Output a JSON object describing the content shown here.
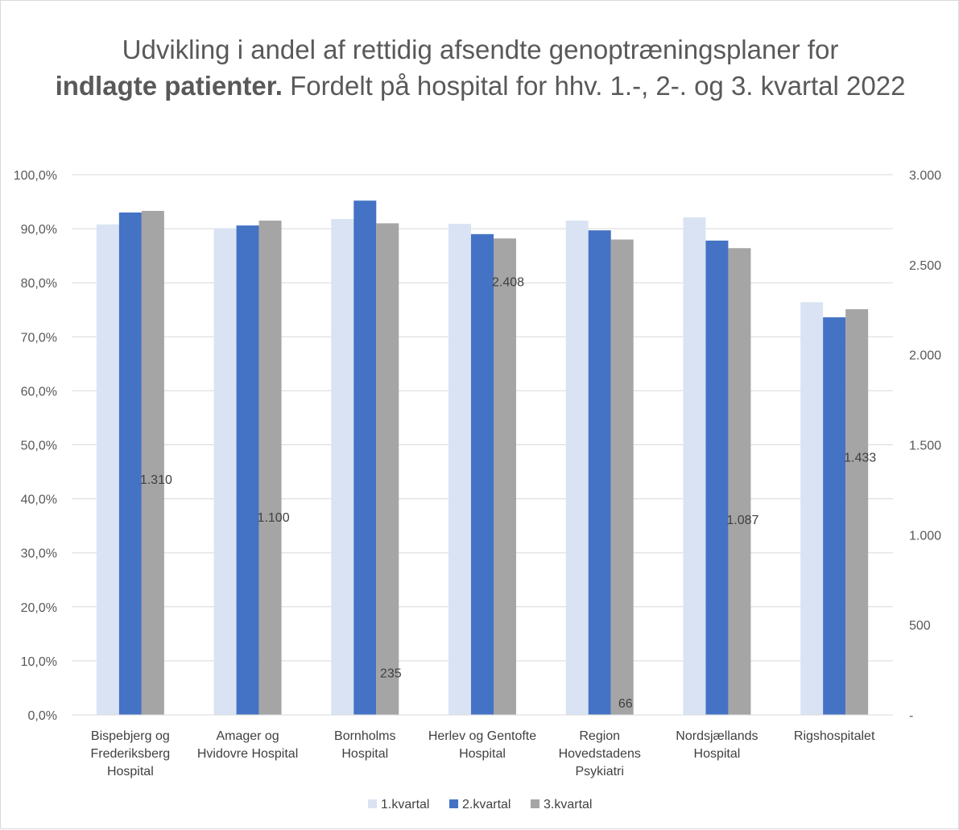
{
  "chart_data": {
    "type": "bar",
    "title_part1": "Udvikling i andel af rettidig afsendte genoptræningsplaner for",
    "title_bold": "indlagte patienter.",
    "title_part2": " Fordelt på hospital for hhv. 1.-, 2-. og 3. kvartal 2022",
    "categories": [
      [
        "Bispebjerg og",
        "Frederiksberg",
        "Hospital"
      ],
      [
        "Amager og",
        "Hvidovre Hospital"
      ],
      [
        "Bornholms",
        "Hospital"
      ],
      [
        "Herlev og Gentofte",
        "Hospital"
      ],
      [
        "Region",
        "Hovedstadens",
        "Psykiatri"
      ],
      [
        "Nordsjællands",
        "Hospital"
      ],
      [
        "Rigshospitalet"
      ]
    ],
    "series": [
      {
        "name": "1.kvartal",
        "color": "#dae3f3",
        "values": [
          90.8,
          90.1,
          91.8,
          90.9,
          91.5,
          92.1,
          76.4
        ]
      },
      {
        "name": "2.kvartal",
        "color": "#4472c4",
        "values": [
          93.0,
          90.6,
          95.2,
          89.0,
          89.7,
          87.8,
          73.6
        ]
      },
      {
        "name": "3.kvartal",
        "color": "#a5a5a5",
        "values": [
          93.3,
          91.5,
          91.0,
          88.2,
          88.0,
          86.4,
          75.1
        ]
      }
    ],
    "secondary_values": [
      1310,
      1100,
      235,
      2408,
      66,
      1087,
      1433
    ],
    "secondary_labels": [
      "1.310",
      "1.100",
      "235",
      "2.408",
      "66",
      "1.087",
      "1.433"
    ],
    "y_ticks": [
      "0,0%",
      "10,0%",
      "20,0%",
      "30,0%",
      "40,0%",
      "50,0%",
      "60,0%",
      "70,0%",
      "80,0%",
      "90,0%",
      "100,0%"
    ],
    "y2_ticks": [
      "-",
      "500",
      "1.000",
      "1.500",
      "2.000",
      "2.500",
      "3.000"
    ],
    "ylim": [
      0,
      100
    ],
    "y2lim": [
      0,
      3000
    ],
    "grid": true,
    "legend_position": "bottom"
  }
}
